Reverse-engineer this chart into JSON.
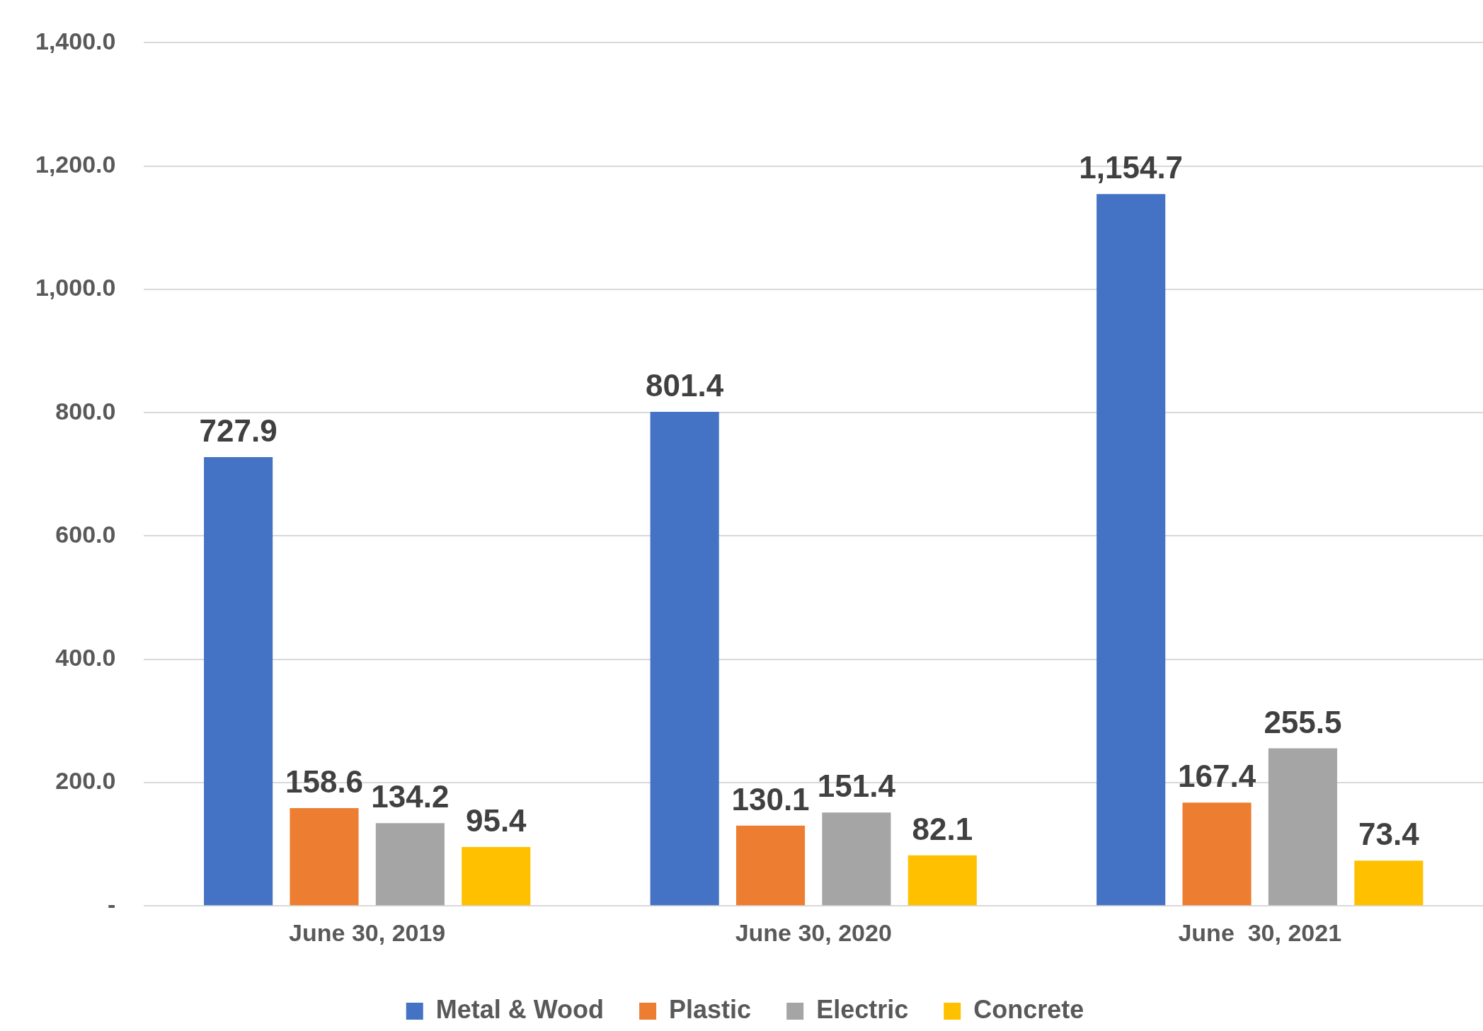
{
  "chart_data": {
    "type": "bar",
    "categories": [
      "June 30, 2019",
      "June 30, 2020",
      "June  30, 2021"
    ],
    "series": [
      {
        "name": "Metal & Wood",
        "color": "#4472c4",
        "values": [
          727.9,
          801.4,
          1154.7
        ],
        "value_labels": [
          "727.9",
          "801.4",
          "1,154.7"
        ]
      },
      {
        "name": "Plastic",
        "color": "#ed7d31",
        "values": [
          158.6,
          130.1,
          167.4
        ],
        "value_labels": [
          "158.6",
          "130.1",
          "167.4"
        ]
      },
      {
        "name": "Electric",
        "color": "#a5a5a5",
        "values": [
          134.2,
          151.4,
          255.5
        ],
        "value_labels": [
          "134.2",
          "151.4",
          "255.5"
        ]
      },
      {
        "name": "Concrete",
        "color": "#ffc000",
        "values": [
          95.4,
          82.1,
          73.4
        ],
        "value_labels": [
          "95.4",
          "82.1",
          "73.4"
        ]
      }
    ],
    "ylim": [
      0,
      1400
    ],
    "yticks": [
      {
        "value": 0,
        "label": "-"
      },
      {
        "value": 200,
        "label": "200.0"
      },
      {
        "value": 400,
        "label": "400.0"
      },
      {
        "value": 600,
        "label": "600.0"
      },
      {
        "value": 800,
        "label": "800.0"
      },
      {
        "value": 1000,
        "label": "1,000.0"
      },
      {
        "value": 1200,
        "label": "1,200.0"
      },
      {
        "value": 1400,
        "label": "1,400.0"
      }
    ],
    "grid": "y",
    "legend": "bottom"
  }
}
